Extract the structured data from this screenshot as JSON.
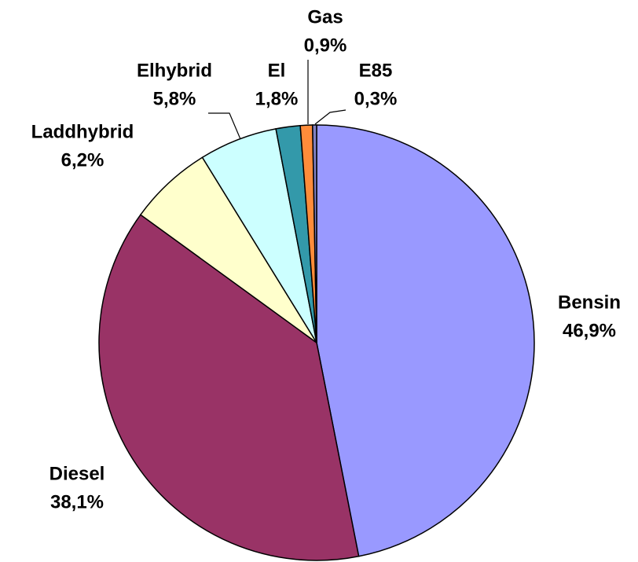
{
  "chart_data": {
    "type": "pie",
    "categories": [
      "Bensin",
      "Diesel",
      "Laddhybrid",
      "Elhybrid",
      "El",
      "Gas",
      "E85"
    ],
    "values": [
      46.9,
      38.1,
      6.2,
      5.8,
      1.8,
      0.9,
      0.3
    ],
    "value_labels": [
      "46,9%",
      "38,1%",
      "6,2%",
      "5,8%",
      "1,8%",
      "0,9%",
      "0,3%"
    ],
    "colors": [
      "#9999ff",
      "#993366",
      "#ffffcc",
      "#ccffff",
      "#3399aa",
      "#ff8c3a",
      "#8080c0"
    ]
  }
}
